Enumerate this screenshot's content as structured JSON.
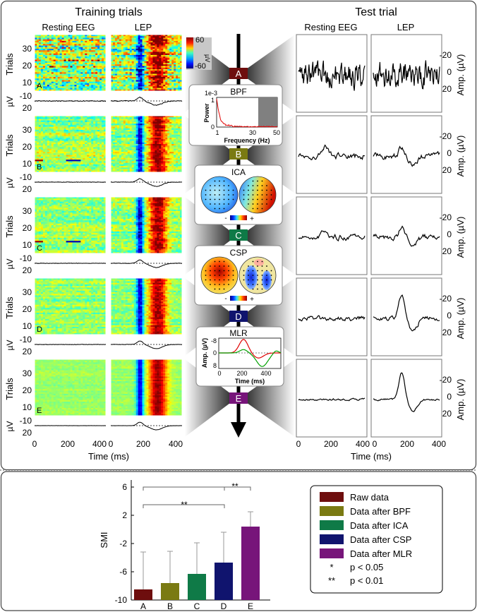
{
  "header": {
    "training_title": "Training trials",
    "test_title": "Test trial",
    "resting_label": "Resting EEG",
    "lep_label": "LEP"
  },
  "colorbar": {
    "max": "60",
    "min": "-60",
    "unit": "µV"
  },
  "axes": {
    "trials_label": "Trials",
    "trial_ticks": [
      "30",
      "20",
      "10"
    ],
    "uv_label": "µV",
    "uv_ticks": [
      "-10",
      "20"
    ],
    "time_ticks": [
      "0",
      "200",
      "400"
    ],
    "time_label": "Time (ms)",
    "amp_label": "Amp. (µV)",
    "amp_ticks": [
      "-20",
      "0",
      "20"
    ]
  },
  "stages": [
    {
      "letter": "A",
      "color": "#6e0e0e"
    },
    {
      "letter": "B",
      "color": "#7a7a12"
    },
    {
      "letter": "C",
      "color": "#0f7a47"
    },
    {
      "letter": "D",
      "color": "#10146e"
    },
    {
      "letter": "E",
      "color": "#77157a"
    }
  ],
  "processing": {
    "bpf": {
      "title": "BPF",
      "exp": "1e-3",
      "ylabel": "Power",
      "yticks": [
        "1",
        "0"
      ],
      "xticks": [
        "1",
        "30",
        "50"
      ],
      "xlabel": "Frequency (Hz)"
    },
    "ica": {
      "title": "ICA",
      "minus": "-",
      "plus": "+"
    },
    "csp": {
      "title": "CSP",
      "minus": "-",
      "plus": "+"
    },
    "mlr": {
      "title": "MLR",
      "ylabel": "Amp. (µV)",
      "yticks": [
        "-8",
        "0",
        "8"
      ],
      "xticks": [
        "0",
        "200",
        "400"
      ],
      "xlabel": "Time (ms)"
    }
  },
  "smi": {
    "ylabel": "SMI",
    "yticks": [
      "6",
      "2",
      "-2",
      "-6",
      "-10"
    ],
    "sig_marks": [
      "**",
      "**"
    ],
    "chart_data": {
      "type": "bar",
      "categories": [
        "A",
        "B",
        "C",
        "D",
        "E"
      ],
      "values": [
        -8.5,
        -7.6,
        -6.3,
        -4.7,
        0.4
      ],
      "errors": [
        5.3,
        4.5,
        4.4,
        4.3,
        2.1
      ],
      "ylim": [
        -10,
        6
      ],
      "ylabel": "SMI",
      "colors": [
        "#6e0e0e",
        "#7a7a12",
        "#0f7a47",
        "#10146e",
        "#77157a"
      ]
    }
  },
  "legend": {
    "items": [
      {
        "label": "Raw data",
        "color": "#6e0e0e"
      },
      {
        "label": "Data after BPF",
        "color": "#7a7a12"
      },
      {
        "label": "Data after ICA",
        "color": "#0f7a47"
      },
      {
        "label": "Data after CSP",
        "color": "#10146e"
      },
      {
        "label": "Data after MLR",
        "color": "#77157a"
      }
    ],
    "sig": [
      {
        "mark": "*",
        "label": "p < 0.05"
      },
      {
        "mark": "**",
        "label": "p < 0.01"
      }
    ]
  }
}
